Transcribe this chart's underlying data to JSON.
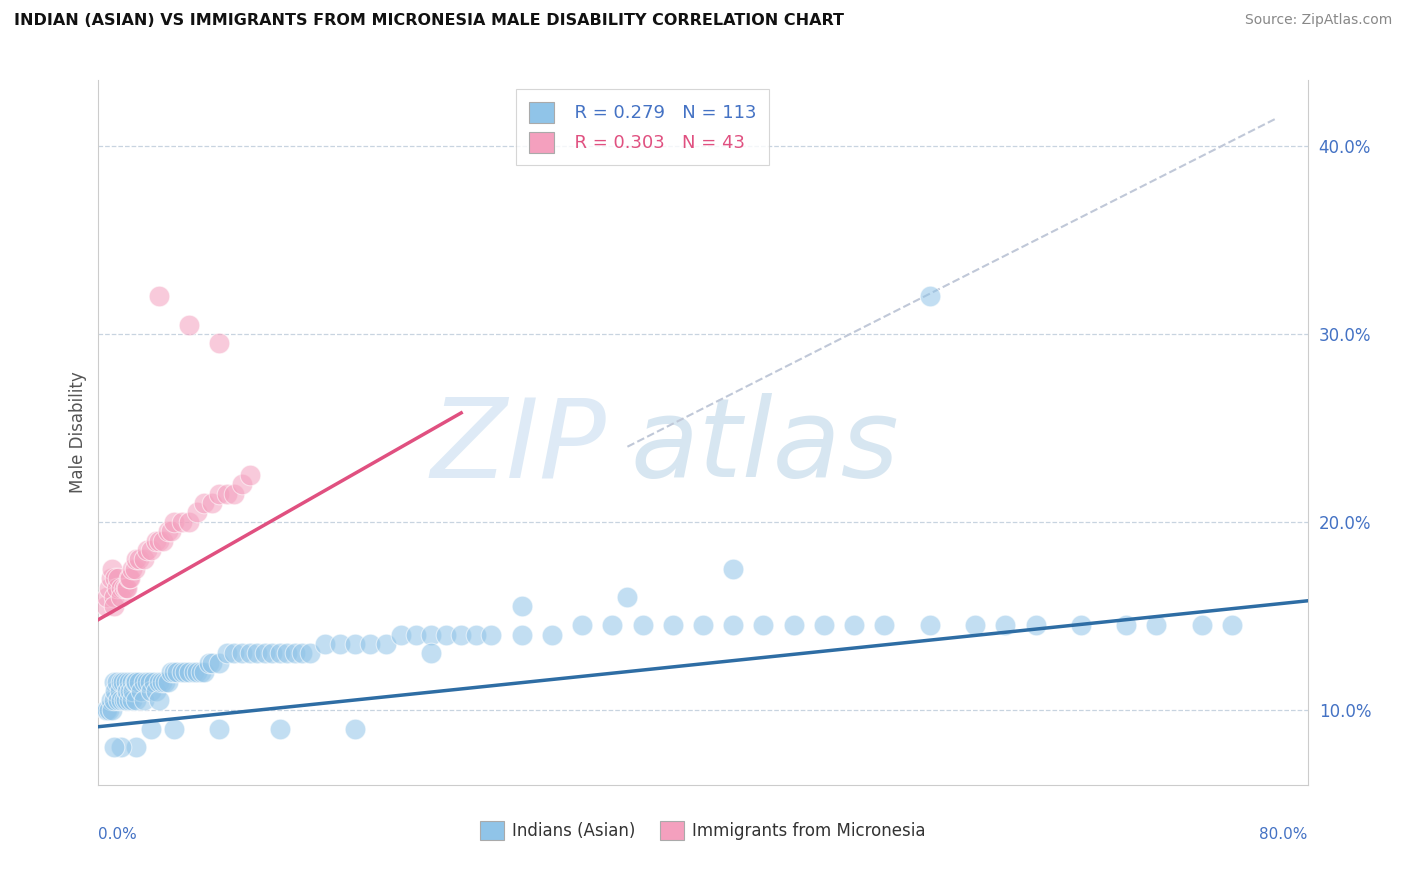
{
  "title": "INDIAN (ASIAN) VS IMMIGRANTS FROM MICRONESIA MALE DISABILITY CORRELATION CHART",
  "source": "Source: ZipAtlas.com",
  "ylabel": "Male Disability",
  "xlim": [
    0.0,
    0.8
  ],
  "ylim": [
    0.06,
    0.435
  ],
  "yticks": [
    0.1,
    0.2,
    0.3,
    0.4
  ],
  "ytick_labels": [
    "10.0%",
    "20.0%",
    "30.0%",
    "40.0%"
  ],
  "legend_r1": "R = 0.279",
  "legend_n1": "N = 113",
  "legend_r2": "R = 0.303",
  "legend_n2": "N = 43",
  "legend_label1": "Indians (Asian)",
  "legend_label2": "Immigrants from Micronesia",
  "color_blue": "#90c4e8",
  "color_pink": "#f4a0be",
  "blue_line_color": "#2e6da4",
  "pink_line_color": "#e05080",
  "dashed_line_color": "#c0c8d8",
  "blue_trend": [
    0.0,
    0.091,
    0.8,
    0.158
  ],
  "pink_trend": [
    0.0,
    0.148,
    0.24,
    0.258
  ],
  "dashed_trend": [
    0.35,
    0.24,
    0.78,
    0.415
  ],
  "blue_x": [
    0.005,
    0.006,
    0.007,
    0.008,
    0.009,
    0.01,
    0.01,
    0.011,
    0.012,
    0.013,
    0.014,
    0.015,
    0.015,
    0.016,
    0.017,
    0.018,
    0.018,
    0.019,
    0.02,
    0.02,
    0.021,
    0.022,
    0.022,
    0.023,
    0.024,
    0.025,
    0.025,
    0.027,
    0.028,
    0.03,
    0.03,
    0.032,
    0.034,
    0.035,
    0.037,
    0.038,
    0.04,
    0.04,
    0.042,
    0.044,
    0.046,
    0.048,
    0.05,
    0.052,
    0.055,
    0.057,
    0.06,
    0.063,
    0.065,
    0.068,
    0.07,
    0.073,
    0.075,
    0.08,
    0.085,
    0.09,
    0.095,
    0.1,
    0.105,
    0.11,
    0.115,
    0.12,
    0.125,
    0.13,
    0.135,
    0.14,
    0.15,
    0.16,
    0.17,
    0.18,
    0.19,
    0.2,
    0.21,
    0.22,
    0.23,
    0.24,
    0.25,
    0.26,
    0.28,
    0.3,
    0.32,
    0.34,
    0.36,
    0.38,
    0.4,
    0.42,
    0.44,
    0.46,
    0.48,
    0.5,
    0.52,
    0.55,
    0.58,
    0.6,
    0.62,
    0.65,
    0.68,
    0.7,
    0.73,
    0.75,
    0.42,
    0.35,
    0.28,
    0.22,
    0.17,
    0.12,
    0.08,
    0.05,
    0.035,
    0.025,
    0.015,
    0.01,
    0.55
  ],
  "blue_y": [
    0.1,
    0.1,
    0.1,
    0.105,
    0.1,
    0.115,
    0.105,
    0.11,
    0.115,
    0.105,
    0.11,
    0.115,
    0.105,
    0.115,
    0.105,
    0.115,
    0.105,
    0.11,
    0.115,
    0.105,
    0.11,
    0.115,
    0.105,
    0.11,
    0.115,
    0.115,
    0.105,
    0.115,
    0.11,
    0.115,
    0.105,
    0.115,
    0.115,
    0.11,
    0.115,
    0.11,
    0.115,
    0.105,
    0.115,
    0.115,
    0.115,
    0.12,
    0.12,
    0.12,
    0.12,
    0.12,
    0.12,
    0.12,
    0.12,
    0.12,
    0.12,
    0.125,
    0.125,
    0.125,
    0.13,
    0.13,
    0.13,
    0.13,
    0.13,
    0.13,
    0.13,
    0.13,
    0.13,
    0.13,
    0.13,
    0.13,
    0.135,
    0.135,
    0.135,
    0.135,
    0.135,
    0.14,
    0.14,
    0.14,
    0.14,
    0.14,
    0.14,
    0.14,
    0.14,
    0.14,
    0.145,
    0.145,
    0.145,
    0.145,
    0.145,
    0.145,
    0.145,
    0.145,
    0.145,
    0.145,
    0.145,
    0.145,
    0.145,
    0.145,
    0.145,
    0.145,
    0.145,
    0.145,
    0.145,
    0.145,
    0.175,
    0.16,
    0.155,
    0.13,
    0.09,
    0.09,
    0.09,
    0.09,
    0.09,
    0.08,
    0.08,
    0.08,
    0.32
  ],
  "pink_x": [
    0.005,
    0.006,
    0.007,
    0.008,
    0.009,
    0.01,
    0.01,
    0.011,
    0.012,
    0.013,
    0.015,
    0.015,
    0.017,
    0.018,
    0.019,
    0.02,
    0.021,
    0.022,
    0.024,
    0.025,
    0.027,
    0.03,
    0.032,
    0.035,
    0.038,
    0.04,
    0.043,
    0.046,
    0.048,
    0.05,
    0.055,
    0.06,
    0.065,
    0.07,
    0.075,
    0.08,
    0.085,
    0.09,
    0.095,
    0.1,
    0.08,
    0.06,
    0.04
  ],
  "pink_y": [
    0.155,
    0.16,
    0.165,
    0.17,
    0.175,
    0.16,
    0.155,
    0.17,
    0.165,
    0.17,
    0.165,
    0.16,
    0.165,
    0.165,
    0.165,
    0.17,
    0.17,
    0.175,
    0.175,
    0.18,
    0.18,
    0.18,
    0.185,
    0.185,
    0.19,
    0.19,
    0.19,
    0.195,
    0.195,
    0.2,
    0.2,
    0.2,
    0.205,
    0.21,
    0.21,
    0.215,
    0.215,
    0.215,
    0.22,
    0.225,
    0.295,
    0.305,
    0.32
  ]
}
